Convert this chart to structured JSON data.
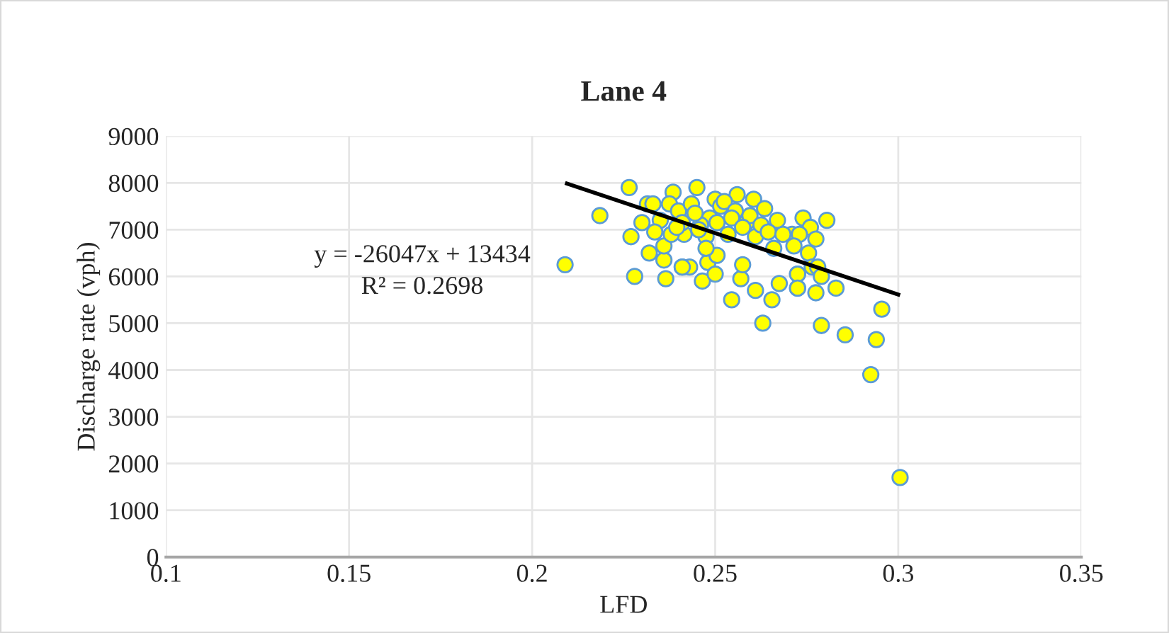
{
  "chart_data": {
    "type": "scatter",
    "title": "Lane 4",
    "xlabel": "LFD",
    "ylabel": "Discharge rate (vph)",
    "xlim": [
      0.1,
      0.35
    ],
    "xticks": [
      0.1,
      0.15,
      0.2,
      0.25,
      0.3,
      0.35
    ],
    "ylim": [
      0,
      9000
    ],
    "yticks": [
      0,
      1000,
      2000,
      3000,
      4000,
      5000,
      6000,
      7000,
      8000,
      9000
    ],
    "grid": true,
    "annotations": [
      "y = -26047x + 13434",
      "R² = 0.2698"
    ],
    "series": [
      {
        "color": "#ffff00",
        "marker": "circle",
        "x": [
          0.209,
          0.2185,
          0.2265,
          0.227,
          0.228,
          0.23,
          0.232,
          0.2315,
          0.233,
          0.2365,
          0.236,
          0.236,
          0.2385,
          0.2375,
          0.24,
          0.241,
          0.243,
          0.2415,
          0.245,
          0.2435,
          0.2465,
          0.248,
          0.25,
          0.2475,
          0.2505,
          0.25,
          0.2515,
          0.2485,
          0.2545,
          0.256,
          0.257,
          0.2575,
          0.2605,
          0.261,
          0.261,
          0.263,
          0.2655,
          0.2675,
          0.266,
          0.2635,
          0.267,
          0.2725,
          0.2725,
          0.274,
          0.276,
          0.271,
          0.2585,
          0.2535,
          0.246,
          0.241,
          0.235,
          0.238,
          0.241,
          0.2475,
          0.2335,
          0.2805,
          0.273,
          0.2775,
          0.2715,
          0.2755,
          0.2765,
          0.278,
          0.2725,
          0.279,
          0.2725,
          0.2775,
          0.283,
          0.2955,
          0.279,
          0.2855,
          0.294,
          0.2925,
          0.3005,
          0.2445,
          0.2525,
          0.2555,
          0.2595,
          0.2625,
          0.2455,
          0.2505,
          0.2545,
          0.2575,
          0.2395,
          0.2645,
          0.2685
        ],
        "values": [
          6250,
          7300,
          7900,
          6850,
          6000,
          7150,
          6500,
          7550,
          7550,
          5950,
          6350,
          6650,
          7800,
          7550,
          7400,
          6200,
          6200,
          6900,
          7900,
          7550,
          5900,
          6300,
          6050,
          6850,
          6450,
          7650,
          7500,
          7250,
          5500,
          7750,
          5950,
          6250,
          7650,
          5700,
          6850,
          5000,
          5500,
          5850,
          6600,
          7450,
          7200,
          6050,
          5750,
          7250,
          7050,
          6900,
          7150,
          6900,
          7100,
          7150,
          7200,
          6900,
          6200,
          6600,
          6950,
          7200,
          6900,
          6800,
          6650,
          6500,
          6200,
          6200,
          6050,
          6000,
          5750,
          5650,
          5750,
          5300,
          4950,
          4750,
          4650,
          3900,
          1700,
          7350,
          7600,
          7400,
          7300,
          7100,
          7000,
          7150,
          7250,
          7050,
          7050,
          6950,
          6900
        ]
      },
      {
        "type": "line",
        "color": "#000000",
        "marker": "none",
        "line_style": "solid",
        "x": [
          0.209,
          0.3005
        ],
        "values": [
          8000,
          5600
        ]
      }
    ]
  }
}
